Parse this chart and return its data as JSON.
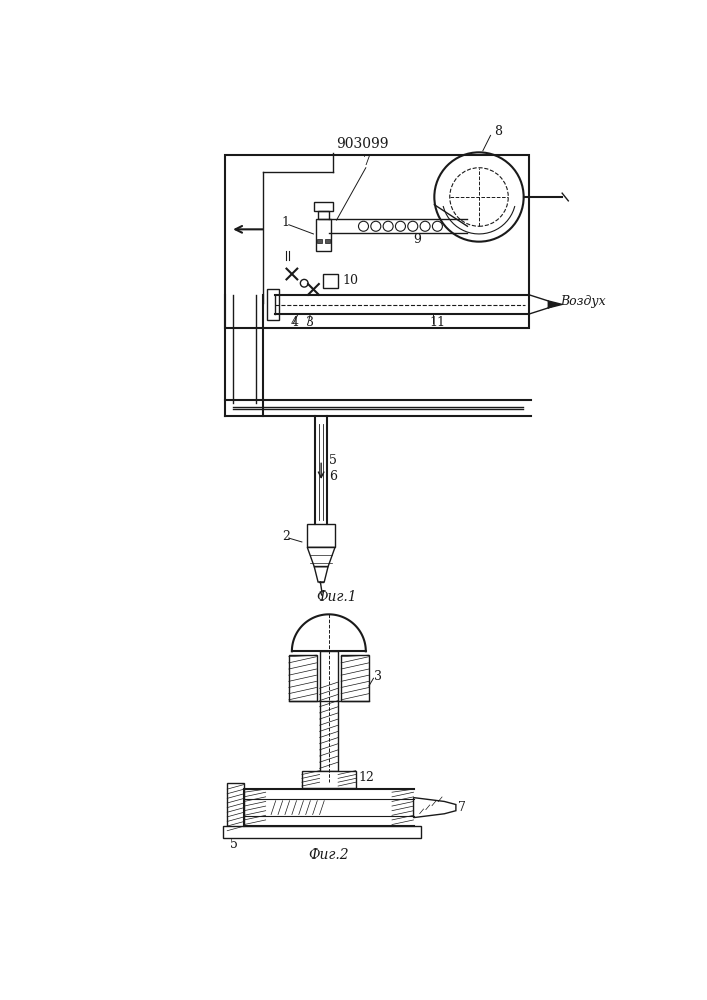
{
  "title": "903099",
  "fig1_label": "Фиг.1",
  "fig2_label": "Фиг.2",
  "vozdukh_label": "Воздух",
  "line_color": "#1a1a1a"
}
